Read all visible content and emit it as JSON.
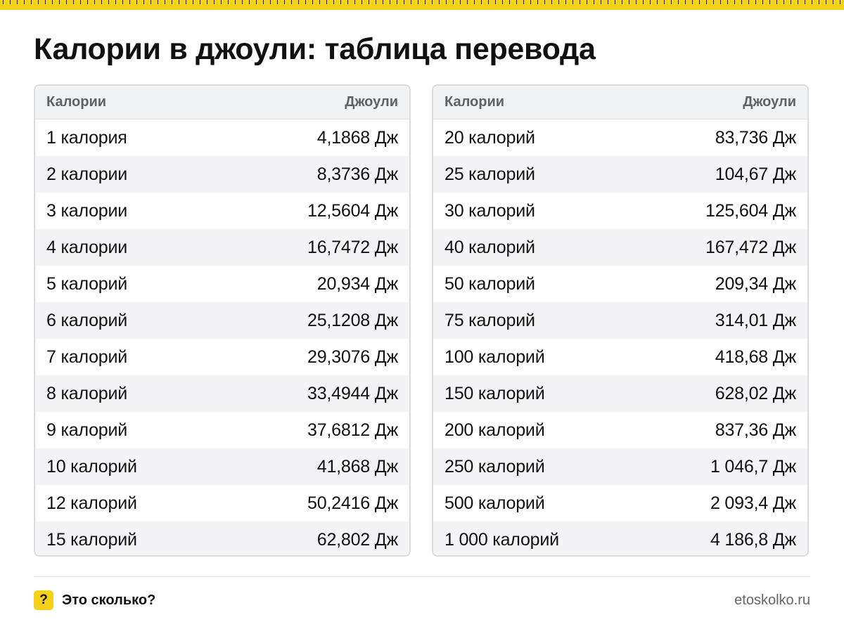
{
  "title": "Калории в джоули: таблица перевода",
  "colors": {
    "accent": "#f5d21a",
    "header_bg": "#f1f2f4",
    "alt_row_bg": "#f4f4f6",
    "border": "#dcdcdc"
  },
  "tables": [
    {
      "headers": {
        "calories": "Калории",
        "joules": "Джоули"
      },
      "rows": [
        {
          "cal": "1 калория",
          "j": "4,1868 Дж"
        },
        {
          "cal": "2 калории",
          "j": "8,3736 Дж"
        },
        {
          "cal": "3 калории",
          "j": "12,5604 Дж"
        },
        {
          "cal": "4 калории",
          "j": "16,7472 Дж"
        },
        {
          "cal": "5 калорий",
          "j": "20,934 Дж"
        },
        {
          "cal": "6 калорий",
          "j": "25,1208 Дж"
        },
        {
          "cal": "7 калорий",
          "j": "29,3076 Дж"
        },
        {
          "cal": "8 калорий",
          "j": "33,4944 Дж"
        },
        {
          "cal": "9 калорий",
          "j": "37,6812 Дж"
        },
        {
          "cal": "10 калорий",
          "j": "41,868 Дж"
        },
        {
          "cal": "12 калорий",
          "j": "50,2416 Дж"
        },
        {
          "cal": "15 калорий",
          "j": "62,802 Дж"
        }
      ]
    },
    {
      "headers": {
        "calories": "Калории",
        "joules": "Джоули"
      },
      "rows": [
        {
          "cal": "20 калорий",
          "j": "83,736 Дж"
        },
        {
          "cal": "25 калорий",
          "j": "104,67 Дж"
        },
        {
          "cal": "30 калорий",
          "j": "125,604 Дж"
        },
        {
          "cal": "40 калорий",
          "j": "167,472 Дж"
        },
        {
          "cal": "50 калорий",
          "j": "209,34 Дж"
        },
        {
          "cal": "75 калорий",
          "j": "314,01 Дж"
        },
        {
          "cal": "100 калорий",
          "j": "418,68 Дж"
        },
        {
          "cal": "150 калорий",
          "j": "628,02 Дж"
        },
        {
          "cal": "200 калорий",
          "j": "837,36 Дж"
        },
        {
          "cal": "250 калорий",
          "j": "1 046,7 Дж"
        },
        {
          "cal": "500 калорий",
          "j": "2 093,4 Дж"
        },
        {
          "cal": "1 000 калорий",
          "j": "4 186,8 Дж"
        }
      ]
    }
  ],
  "footer": {
    "badge": "?",
    "brand": "Это сколько?",
    "site": "etoskolko.ru"
  }
}
